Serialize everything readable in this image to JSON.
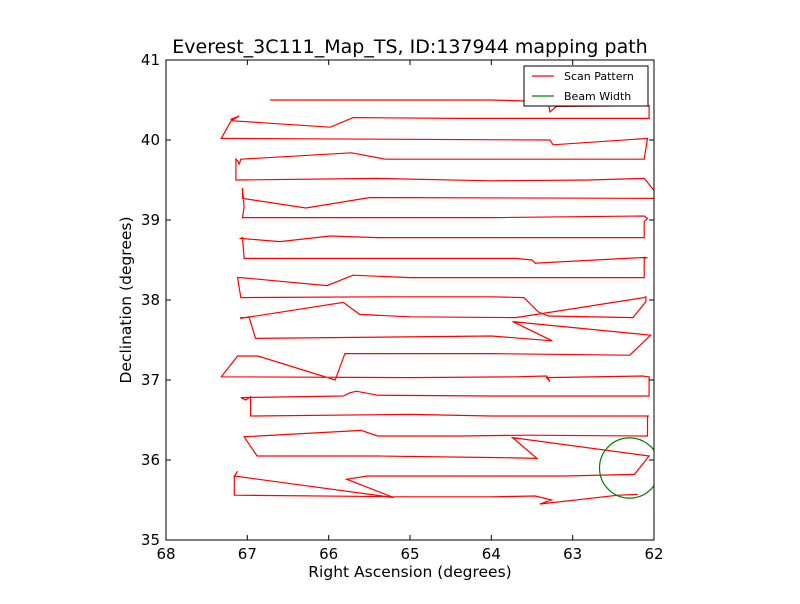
{
  "chart_data": {
    "type": "line",
    "title": "Everest_3C111_Map_TS, ID:137944 mapping path",
    "xlabel": "Right Ascension (degrees)",
    "ylabel": "Declination (degrees)",
    "xlim": [
      68,
      62
    ],
    "ylim": [
      35,
      41
    ],
    "x_inverted": true,
    "xticks": [
      68,
      67,
      66,
      65,
      64,
      63,
      62
    ],
    "yticks": [
      35,
      36,
      37,
      38,
      39,
      40,
      41
    ],
    "legend_position": "top-right",
    "colors": {
      "scan": "#ff0000",
      "beam": "#008000"
    },
    "series": [
      {
        "name": "Scan Pattern",
        "points": [
          [
            66.72,
            40.5
          ],
          [
            64.0,
            40.5
          ],
          [
            63.3,
            40.48
          ],
          [
            63.28,
            40.35
          ],
          [
            63.2,
            40.42
          ],
          [
            62.06,
            40.43
          ],
          [
            62.06,
            40.27
          ],
          [
            64.4,
            40.27
          ],
          [
            65.7,
            40.28
          ],
          [
            65.98,
            40.16
          ],
          [
            67.18,
            40.24
          ],
          [
            67.2,
            40.26
          ],
          [
            67.1,
            40.3
          ],
          [
            67.2,
            40.24
          ],
          [
            67.32,
            40.02
          ],
          [
            63.28,
            40.0
          ],
          [
            63.24,
            39.94
          ],
          [
            62.08,
            40.02
          ],
          [
            62.12,
            39.76
          ],
          [
            64.1,
            39.76
          ],
          [
            65.3,
            39.76
          ],
          [
            65.72,
            39.84
          ],
          [
            67.08,
            39.76
          ],
          [
            67.1,
            39.7
          ],
          [
            67.12,
            39.74
          ],
          [
            67.14,
            39.76
          ],
          [
            67.14,
            39.5
          ],
          [
            65.4,
            39.52
          ],
          [
            64.0,
            39.49
          ],
          [
            62.8,
            39.5
          ],
          [
            62.12,
            39.52
          ],
          [
            61.92,
            39.27
          ],
          [
            65.2,
            39.28
          ],
          [
            65.5,
            39.28
          ],
          [
            66.28,
            39.15
          ],
          [
            67.06,
            39.27
          ],
          [
            67.06,
            39.4
          ],
          [
            67.04,
            39.16
          ],
          [
            67.06,
            39.03
          ],
          [
            64.0,
            39.03
          ],
          [
            62.12,
            39.05
          ],
          [
            62.08,
            39.02
          ],
          [
            62.12,
            38.98
          ],
          [
            62.12,
            38.78
          ],
          [
            64.0,
            38.78
          ],
          [
            65.4,
            38.78
          ],
          [
            65.98,
            38.8
          ],
          [
            66.6,
            38.73
          ],
          [
            67.08,
            38.77
          ],
          [
            67.06,
            38.78
          ],
          [
            67.04,
            38.52
          ],
          [
            65.6,
            38.52
          ],
          [
            64.0,
            38.52
          ],
          [
            63.7,
            38.52
          ],
          [
            63.5,
            38.5
          ],
          [
            63.45,
            38.45
          ],
          [
            63.46,
            38.46
          ],
          [
            62.16,
            38.53
          ],
          [
            62.08,
            38.53
          ],
          [
            62.12,
            38.52
          ],
          [
            62.12,
            38.28
          ],
          [
            65.0,
            38.28
          ],
          [
            65.7,
            38.31
          ],
          [
            66.02,
            38.18
          ],
          [
            67.08,
            38.28
          ],
          [
            67.12,
            38.28
          ],
          [
            67.08,
            38.03
          ],
          [
            65.3,
            38.04
          ],
          [
            64.0,
            38.04
          ],
          [
            63.6,
            38.03
          ],
          [
            63.42,
            37.85
          ],
          [
            63.3,
            37.8
          ],
          [
            62.26,
            37.78
          ],
          [
            62.1,
            37.98
          ],
          [
            62.1,
            38.04
          ],
          [
            62.12,
            38.03
          ],
          [
            63.7,
            37.78
          ],
          [
            65.0,
            37.79
          ],
          [
            65.62,
            37.82
          ],
          [
            65.82,
            37.97
          ],
          [
            67.02,
            37.78
          ],
          [
            67.08,
            37.78
          ],
          [
            67.08,
            37.77
          ],
          [
            66.98,
            37.79
          ],
          [
            66.9,
            37.52
          ],
          [
            64.0,
            37.55
          ],
          [
            63.25,
            37.49
          ],
          [
            63.74,
            37.73
          ],
          [
            62.04,
            37.56
          ],
          [
            62.3,
            37.31
          ],
          [
            64.0,
            37.33
          ],
          [
            65.4,
            37.33
          ],
          [
            65.8,
            37.33
          ],
          [
            65.92,
            37.0
          ],
          [
            66.87,
            37.3
          ],
          [
            67.12,
            37.3
          ],
          [
            67.32,
            37.04
          ],
          [
            65.0,
            37.03
          ],
          [
            63.7,
            37.04
          ],
          [
            63.32,
            37.05
          ],
          [
            63.28,
            36.98
          ],
          [
            63.32,
            37.03
          ],
          [
            62.14,
            37.05
          ],
          [
            62.08,
            37.04
          ],
          [
            62.06,
            37.04
          ],
          [
            62.06,
            36.8
          ],
          [
            64.0,
            36.8
          ],
          [
            65.4,
            36.81
          ],
          [
            65.66,
            36.86
          ],
          [
            65.74,
            36.84
          ],
          [
            65.82,
            36.8
          ],
          [
            67.08,
            36.78
          ],
          [
            67.02,
            36.75
          ],
          [
            66.96,
            36.79
          ],
          [
            66.96,
            36.55
          ],
          [
            65.0,
            36.57
          ],
          [
            64.0,
            36.55
          ],
          [
            63.4,
            36.55
          ],
          [
            62.08,
            36.55
          ],
          [
            62.06,
            36.55
          ],
          [
            62.08,
            36.55
          ],
          [
            62.08,
            36.3
          ],
          [
            63.56,
            36.31
          ],
          [
            64.4,
            36.3
          ],
          [
            65.4,
            36.3
          ],
          [
            65.6,
            36.37
          ],
          [
            67.04,
            36.29
          ],
          [
            66.88,
            36.05
          ],
          [
            65.4,
            36.05
          ],
          [
            63.9,
            36.03
          ],
          [
            63.44,
            36.02
          ],
          [
            63.74,
            36.28
          ],
          [
            62.06,
            36.05
          ],
          [
            62.24,
            35.82
          ],
          [
            63.1,
            35.8
          ],
          [
            65.52,
            35.8
          ],
          [
            65.78,
            35.76
          ],
          [
            65.2,
            35.53
          ],
          [
            67.16,
            35.8
          ],
          [
            67.12,
            35.86
          ],
          [
            67.16,
            35.79
          ],
          [
            67.16,
            35.56
          ],
          [
            65.0,
            35.54
          ],
          [
            64.0,
            35.54
          ],
          [
            63.46,
            35.55
          ],
          [
            63.26,
            35.5
          ],
          [
            63.4,
            35.45
          ],
          [
            62.44,
            35.56
          ],
          [
            62.2,
            35.57
          ]
        ]
      }
    ],
    "beam": {
      "name": "Beam Width",
      "center": [
        62.3,
        35.9
      ],
      "radius_deg": 0.37
    }
  }
}
